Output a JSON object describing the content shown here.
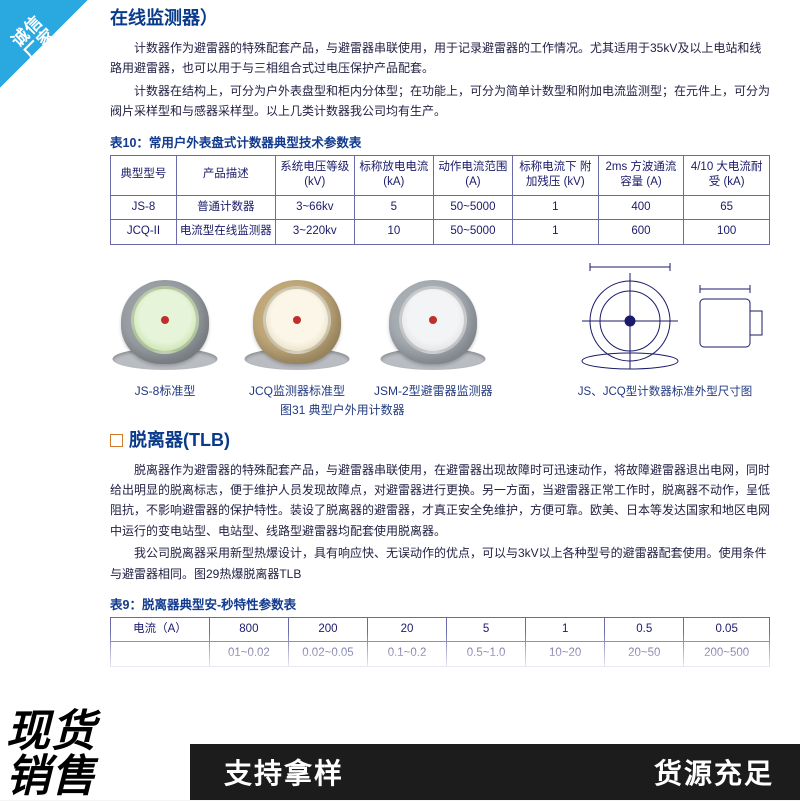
{
  "badges": {
    "top_left_line1": "诚信",
    "top_left_line2": "厂家",
    "bottom_left_line1": "现货",
    "bottom_left_line2": "销售",
    "bottom_bar_left": "支持拿样",
    "bottom_bar_right": "货源充足"
  },
  "section1": {
    "title": "在线监测器）",
    "para1": "计数器作为避雷器的特殊配套产品，与避雷器串联使用，用于记录避雷器的工作情况。尤其适用于35kV及以上电站和线路用避雷器，也可以用于与三相组合式过电压保护产品配套。",
    "para2": "计数器在结构上，可分为户外表盘型和柜内分体型；在功能上，可分为简单计数型和附加电流监测型；在元件上，可分为阀片采样型和与感器采样型。以上几类计数器我公司均有生产。"
  },
  "table10": {
    "caption": "表10：常用户外表盘式计数器典型技术参数表",
    "headers": [
      "典型型号",
      "产品描述",
      "系统电压等级 (kV)",
      "标称放电电流 (kA)",
      "动作电流范围 (A)",
      "标称电流下 附加残压 (kV)",
      "2ms 方波通流容量 (A)",
      "4/10 大电流耐受 (kA)"
    ],
    "rows": [
      [
        "JS-8",
        "普通计数器",
        "3~66kv",
        "5",
        "50~5000",
        "1",
        "400",
        "65"
      ],
      [
        "JCQ-II",
        "电流型在线监测器",
        "3~220kv",
        "10",
        "50~5000",
        "1",
        "600",
        "100"
      ]
    ],
    "col_widths": [
      "10%",
      "15%",
      "12%",
      "12%",
      "12%",
      "13%",
      "13%",
      "13%"
    ]
  },
  "products": {
    "p1": "JS-8标准型",
    "p2": "JCQ监测器标准型",
    "p3": "JSM-2型避雷器监测器",
    "diagram": "JS、JCQ型计数器标准外型尺寸图",
    "figure_caption": "图31 典型户外用计数器"
  },
  "section2": {
    "title": "脱离器(TLB)",
    "para1": "脱离器作为避雷器的特殊配套产品，与避雷器串联使用，在避雷器出现故障时可迅速动作，将故障避雷器退出电网，同时给出明显的脱离标志，便于维护人员发现故障点，对避雷器进行更换。另一方面，当避雷器正常工作时，脱离器不动作，呈低阻抗，不影响避雷器的保护特性。装设了脱离器的避雷器，才真正安全免维护，方便可靠。欧美、日本等发达国家和地区电网中运行的变电站型、电站型、线路型避雷器均配套使用脱离器。",
    "para2": "我公司脱离器采用新型热爆设计，具有响应快、无误动作的优点，可以与3kV以上各种型号的避雷器配套使用。使用条件与避雷器相同。图29热爆脱离器TLB"
  },
  "table9": {
    "caption": "表9：脱离器典型安-秒特性参数表",
    "header": "电流（A）",
    "cols": [
      "800",
      "200",
      "20",
      "5",
      "1",
      "0.5",
      "0.05"
    ],
    "row2_label": "",
    "row2": [
      "01~0.02",
      "0.02~0.05",
      "0.1~0.2",
      "0.5~1.0",
      "10~20",
      "20~50",
      "200~500"
    ],
    "col_widths": [
      "15%",
      "12%",
      "12%",
      "12%",
      "12%",
      "12%",
      "12%",
      "13%"
    ]
  },
  "colors": {
    "badge_blue": "#2aa8e0",
    "heading_blue": "#0a3b8a",
    "accent_orange": "#d07a2a",
    "table_border": "#6a6aa8"
  }
}
